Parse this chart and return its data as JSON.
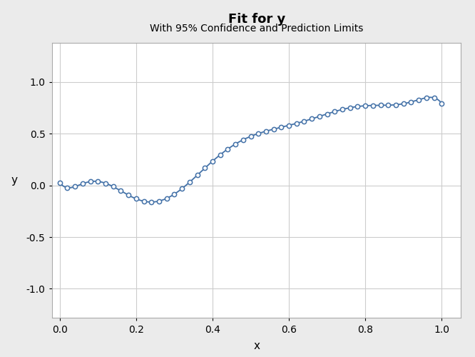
{
  "title": "Fit for y",
  "subtitle": "With 95% Confidence and Prediction Limits",
  "xlabel": "x",
  "ylabel": "y",
  "xlim": [
    -0.02,
    1.05
  ],
  "ylim": [
    -1.28,
    1.38
  ],
  "yticks": [
    -1.0,
    -0.5,
    0.0,
    0.5,
    1.0
  ],
  "xticks": [
    0.0,
    0.2,
    0.4,
    0.6,
    0.8,
    1.0
  ],
  "line_color": "#4472a8",
  "marker_color": "#4472a8",
  "bg_color": "#ebebeb",
  "plot_bg_color": "#ffffff",
  "n_markers": 51,
  "title_fontsize": 13,
  "subtitle_fontsize": 10,
  "label_fontsize": 11,
  "tick_fontsize": 10,
  "poly_degree": 9
}
